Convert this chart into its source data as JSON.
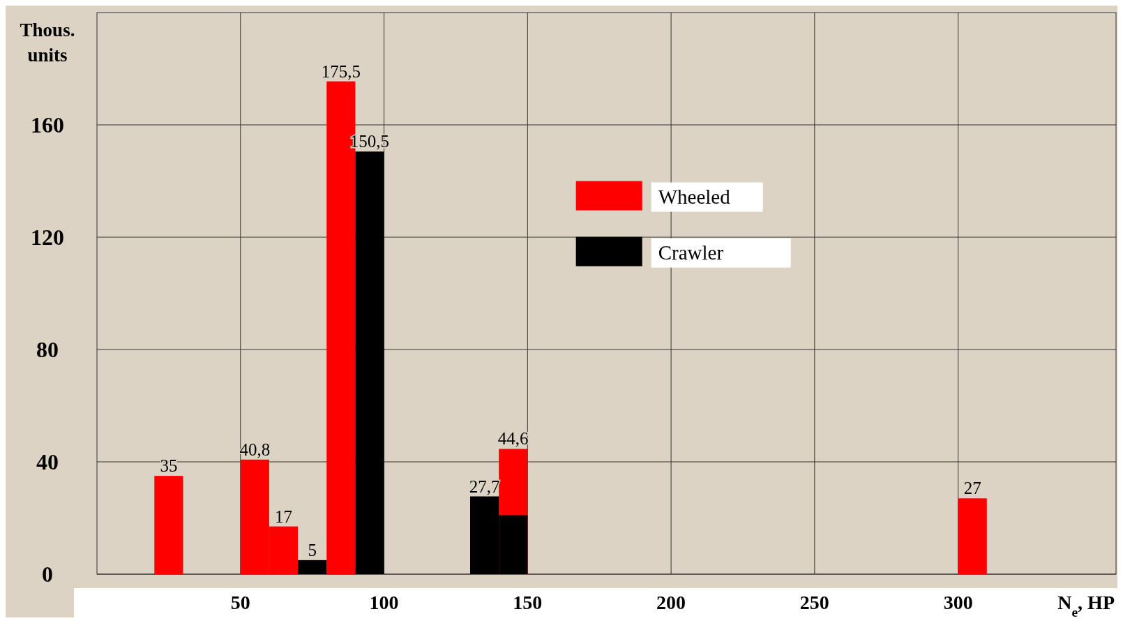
{
  "chart_data": {
    "type": "bar",
    "xlabel": "N$_{e}$, HP",
    "ylabel": "Thous. units",
    "xlim": [
      0,
      355
    ],
    "xticks": [
      50,
      100,
      150,
      200,
      250,
      300
    ],
    "ylim": [
      0,
      200
    ],
    "yticks": [
      0,
      40,
      80,
      120,
      160
    ],
    "grid": true,
    "legend": "top",
    "series": [
      {
        "name": "Wheeled",
        "color": "#ff0000",
        "x": [
          25,
          55,
          65,
          85,
          145,
          305
        ],
        "values": [
          35,
          40.8,
          17,
          175.5,
          44.6,
          27
        ],
        "value_labels": [
          "35",
          "40,8",
          "17",
          "175,5",
          "44,6",
          "27"
        ]
      },
      {
        "name": "Crawler",
        "color": "#000000",
        "x": [
          75,
          95,
          135,
          145
        ],
        "values": [
          5,
          150.5,
          27.7,
          21
        ],
        "value_labels": [
          "5",
          "150,5",
          "27,7",
          null
        ]
      }
    ]
  }
}
